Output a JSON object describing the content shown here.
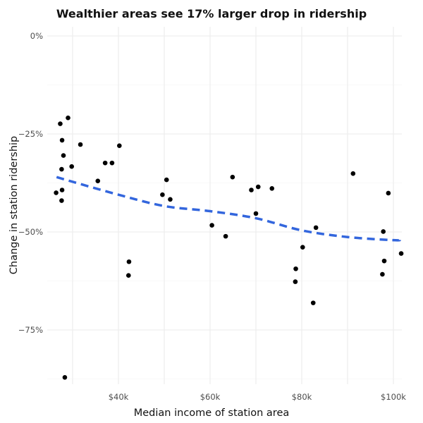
{
  "chart_data": {
    "type": "scatter",
    "title": "Wealthier areas see 17% larger drop in ridership",
    "xlabel": "Median income of station area",
    "ylabel": "Change in station ridership",
    "x_unit": "thousand USD",
    "y_unit": "percent",
    "xlim": [
      25.5,
      103
    ],
    "ylim": [
      -89.5,
      2
    ],
    "x_ticks": [
      {
        "value": 40,
        "label": "$40k"
      },
      {
        "value": 60,
        "label": "$60k"
      },
      {
        "value": 80,
        "label": "$80k"
      },
      {
        "value": 100,
        "label": "$100k"
      }
    ],
    "x_minor_ticks": [
      30,
      50,
      70,
      90
    ],
    "y_ticks": [
      {
        "value": 0,
        "label": "0%"
      },
      {
        "value": -25,
        "label": "−25%"
      },
      {
        "value": -50,
        "label": "−50%"
      },
      {
        "value": -75,
        "label": "−75%"
      }
    ],
    "y_minor_ticks": [
      -12.5,
      -37.5,
      -62.5,
      -87.5
    ],
    "grid": true,
    "legend": "none",
    "point_color": "#000000",
    "trend_color": "#3366dd",
    "points": [
      {
        "x": 26.4,
        "y": -40.0
      },
      {
        "x": 27.3,
        "y": -22.4
      },
      {
        "x": 27.6,
        "y": -34.0
      },
      {
        "x": 27.7,
        "y": -26.6
      },
      {
        "x": 27.7,
        "y": -39.3
      },
      {
        "x": 27.6,
        "y": -42.0
      },
      {
        "x": 28.0,
        "y": -30.5
      },
      {
        "x": 28.3,
        "y": -87.1
      },
      {
        "x": 29.0,
        "y": -20.9
      },
      {
        "x": 29.8,
        "y": -33.3
      },
      {
        "x": 31.7,
        "y": -27.7
      },
      {
        "x": 35.5,
        "y": -37.0
      },
      {
        "x": 37.1,
        "y": -32.4
      },
      {
        "x": 38.6,
        "y": -32.4
      },
      {
        "x": 40.2,
        "y": -28.0
      },
      {
        "x": 42.3,
        "y": -57.6
      },
      {
        "x": 42.2,
        "y": -61.1
      },
      {
        "x": 49.6,
        "y": -40.5
      },
      {
        "x": 50.5,
        "y": -36.7
      },
      {
        "x": 51.3,
        "y": -41.7
      },
      {
        "x": 60.4,
        "y": -48.3
      },
      {
        "x": 63.4,
        "y": -51.1
      },
      {
        "x": 64.9,
        "y": -36.0
      },
      {
        "x": 69.0,
        "y": -39.3
      },
      {
        "x": 70.0,
        "y": -45.3
      },
      {
        "x": 70.5,
        "y": -38.5
      },
      {
        "x": 73.5,
        "y": -38.9
      },
      {
        "x": 78.6,
        "y": -62.7
      },
      {
        "x": 78.7,
        "y": -59.4
      },
      {
        "x": 80.2,
        "y": -53.9
      },
      {
        "x": 82.5,
        "y": -68.1
      },
      {
        "x": 83.1,
        "y": -48.9
      },
      {
        "x": 91.2,
        "y": -35.1
      },
      {
        "x": 97.6,
        "y": -60.8
      },
      {
        "x": 97.8,
        "y": -49.9
      },
      {
        "x": 98.0,
        "y": -57.4
      },
      {
        "x": 98.9,
        "y": -40.1
      },
      {
        "x": 101.7,
        "y": -55.5
      }
    ],
    "trend_line": {
      "style": "dashed",
      "method": "smooth",
      "points": [
        {
          "x": 26.5,
          "y": -36.0
        },
        {
          "x": 30,
          "y": -37.2
        },
        {
          "x": 40,
          "y": -40.5
        },
        {
          "x": 50,
          "y": -43.4
        },
        {
          "x": 60,
          "y": -44.7
        },
        {
          "x": 70,
          "y": -46.5
        },
        {
          "x": 80,
          "y": -49.6
        },
        {
          "x": 90,
          "y": -51.3
        },
        {
          "x": 100,
          "y": -52.1
        },
        {
          "x": 101.5,
          "y": -52.0
        }
      ]
    }
  }
}
